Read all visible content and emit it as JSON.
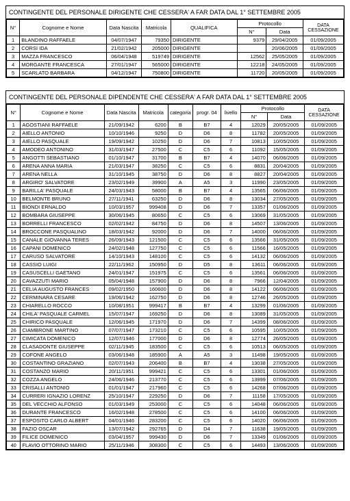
{
  "table1": {
    "title": "CONTINGENTE DEL PERSONALE DIRIGENTE CHE  CESSERA' A FAR DATA DAL 1° SETTEMBRE  2005",
    "cols": {
      "n": "N°",
      "nome": "Cognome e Nome",
      "nascita": "Data Nascita",
      "matricola": "Matricola",
      "qualifica": "QUALIFICA",
      "protocollo": "Protocollo",
      "proto_n": "N°",
      "proto_data": "Data",
      "cess": "DATA CESSAZIONE"
    },
    "rows": [
      {
        "n": "1",
        "nome": "BLANDINO RAFFAELE",
        "nascita": "04/07/1947",
        "matricola": "79350",
        "qualifica": "DIRIGENTE",
        "proto_n": "9379",
        "proto_data": "29/04/2005",
        "cess": "01/09/2005"
      },
      {
        "n": "2",
        "nome": "CORSI IDA",
        "nascita": "21/02/1942",
        "matricola": "205000",
        "qualifica": "DIRIGENTE",
        "proto_n": "",
        "proto_data": "20/06/2005",
        "cess": "01/09/2005"
      },
      {
        "n": "3",
        "nome": "MAZZA FRANCESCO",
        "nascita": "06/04/1948",
        "matricola": "519749",
        "qualifica": "DIRIGENTE",
        "proto_n": "12562",
        "proto_data": "25/05/2005",
        "cess": "01/09/2005"
      },
      {
        "n": "4",
        "nome": "MORGANTE FRANCESCA",
        "nascita": "27/01/1947",
        "matricola": "565000",
        "qualifica": "DIRIGENTE",
        "proto_n": "12218",
        "proto_data": "24/05/2005",
        "cess": "01/09/2005"
      },
      {
        "n": "5",
        "nome": "SCARLATO BARBARA",
        "nascita": "04/12/1947",
        "matricola": "750800",
        "qualifica": "DIRIGENTE",
        "proto_n": "11720",
        "proto_data": "20/05/2005",
        "cess": "01/09/2005"
      }
    ]
  },
  "table2": {
    "title": "CONTINGENTE DEL PERSONALE DIPENDENTE CHE CESSERA'  A FAR DATA DAL 1° SETTEMBRE  2005",
    "cols": {
      "n": "N°",
      "nome": "Cognome e Nome",
      "nascita": "Data Nascita",
      "matricola": "Matricola",
      "categoria": "categoria",
      "progr": "progr. 04",
      "livello": "livello",
      "protocollo": "Protocollo",
      "proto_n": "N°",
      "proto_data": "Data",
      "cess": "DATA CESSAZIONE"
    },
    "rows": [
      {
        "n": "1",
        "nome": "AGOSTIANI RAFFAELE",
        "nascita": "21/09/1942",
        "matricola": "6200",
        "categoria": "B",
        "progr": "B7",
        "livello": "4",
        "proto_n": "12029",
        "proto_data": "20/05/2005",
        "cess": "01/09/2005"
      },
      {
        "n": "2",
        "nome": "AIELLO ANTONIO",
        "nascita": "10/10/1946",
        "matricola": "9250",
        "categoria": "D",
        "progr": "D6",
        "livello": "8",
        "proto_n": "11782",
        "proto_data": "20/05/2005",
        "cess": "01/09/2005"
      },
      {
        "n": "3",
        "nome": "AIELLO PASQUALE",
        "nascita": "19/09/1942",
        "matricola": "10250",
        "categoria": "D",
        "progr": "D6",
        "livello": "7",
        "proto_n": "10813",
        "proto_data": "10/05/2005",
        "cess": "01/09/2005"
      },
      {
        "n": "4",
        "nome": "AMODEO ANTONINO",
        "nascita": "31/03/1947",
        "matricola": "27500",
        "categoria": "C",
        "progr": "C5",
        "livello": "6",
        "proto_n": "11092",
        "proto_data": "15/05/2005",
        "cess": "01/09/2005"
      },
      {
        "n": "5",
        "nome": "ANGOTTI SEBASTIANO",
        "nascita": "01/10/1947",
        "matricola": "31700",
        "categoria": "B",
        "progr": "B7",
        "livello": "4",
        "proto_n": "14070",
        "proto_data": "06/06/2005",
        "cess": "01/09/2005"
      },
      {
        "n": "6",
        "nome": "ARENA ANNA MARIA",
        "nascita": "21/03/1947",
        "matricola": "38250",
        "categoria": "C",
        "progr": "C5",
        "livello": "6",
        "proto_n": "8831",
        "proto_data": "20/04/2005",
        "cess": "01/09/2005"
      },
      {
        "n": "7",
        "nome": "ARENA NELLA",
        "nascita": "31/10/1945",
        "matricola": "38750",
        "categoria": "D",
        "progr": "D6",
        "livello": "8",
        "proto_n": "8827",
        "proto_data": "20/04/2005",
        "cess": "01/09/2005"
      },
      {
        "n": "8",
        "nome": "ARGIRO' SALVATORE",
        "nascita": "23/02/1949",
        "matricola": "39900",
        "categoria": "A",
        "progr": "A5",
        "livello": "3",
        "proto_n": "11990",
        "proto_data": "23/05/2005",
        "cess": "01/09/2005"
      },
      {
        "n": "9",
        "nome": "BARILLA' PASQUALE",
        "nascita": "24/03/1943",
        "matricola": "58000",
        "categoria": "B",
        "progr": "B7",
        "livello": "4",
        "proto_n": "13565",
        "proto_data": "06/06/2005",
        "cess": "01/09/2005"
      },
      {
        "n": "10",
        "nome": "BELMONTE BRUNO",
        "nascita": "27/11/1941",
        "matricola": "63250",
        "categoria": "D",
        "progr": "D6",
        "livello": "8",
        "proto_n": "13034",
        "proto_data": "27/05/2005",
        "cess": "01/09/2005"
      },
      {
        "n": "11",
        "nome": "BIONDI ERNALDO",
        "nascita": "10/03/1957",
        "matricola": "999408",
        "categoria": "D",
        "progr": "D6",
        "livello": "7",
        "proto_n": "13357",
        "proto_data": "01/06/2005",
        "cess": "01/09/2005"
      },
      {
        "n": "12",
        "nome": "BOMBARA GIUSEPPE",
        "nascita": "30/06/1945",
        "matricola": "80650",
        "categoria": "C",
        "progr": "C5",
        "livello": "6",
        "proto_n": "13069",
        "proto_data": "31/05/2005",
        "cess": "01/09/2005"
      },
      {
        "n": "13",
        "nome": "BORRELLI FRANCESCO",
        "nascita": "02/02/1942",
        "matricola": "84750",
        "categoria": "D",
        "progr": "D6",
        "livello": "8",
        "proto_n": "14507",
        "proto_data": "13/06/2005",
        "cess": "01/09/2005"
      },
      {
        "n": "14",
        "nome": "BROCCONE PASQUALINO",
        "nascita": "18/03/1942",
        "matricola": "92000",
        "categoria": "D",
        "progr": "D6",
        "livello": "7",
        "proto_n": "14000",
        "proto_data": "06/06/2005",
        "cess": "01/09/2005"
      },
      {
        "n": "15",
        "nome": "CANALE GIOVANNA TERES",
        "nascita": "26/09/1943",
        "matricola": "121500",
        "categoria": "C",
        "progr": "C5",
        "livello": "6",
        "proto_n": "13566",
        "proto_data": "31/05/2005",
        "cess": "01/09/2005"
      },
      {
        "n": "16",
        "nome": "CAPANI DOMENICO",
        "nascita": "24/02/1948",
        "matricola": "127750",
        "categoria": "C",
        "progr": "C5",
        "livello": "6",
        "proto_n": "11566",
        "proto_data": "16/05/2005",
        "cess": "01/09/2005"
      },
      {
        "n": "17",
        "nome": "CARUSO SALVATORE",
        "nascita": "14/10/1943",
        "matricola": "148100",
        "categoria": "C",
        "progr": "C5",
        "livello": "6",
        "proto_n": "14132",
        "proto_data": "06/06/2005",
        "cess": "01/09/2005"
      },
      {
        "n": "18",
        "nome": "CASSIO LUIGI",
        "nascita": "22/11/1962",
        "matricola": "150950",
        "categoria": "D",
        "progr": "D5",
        "livello": "8",
        "proto_n": "13611",
        "proto_data": "06/06/2005",
        "cess": "01/09/2005"
      },
      {
        "n": "19",
        "nome": "CASUSCELLI GAETANO",
        "nascita": "24/01/1947",
        "matricola": "151975",
        "categoria": "C",
        "progr": "C5",
        "livello": "6",
        "proto_n": "13561",
        "proto_data": "06/06/2005",
        "cess": "01/09/2005"
      },
      {
        "n": "20",
        "nome": "CAVAZZUTI MARIO",
        "nascita": "05/04/1948",
        "matricola": "157900",
        "categoria": "D",
        "progr": "D6",
        "livello": "8",
        "proto_n": "7966",
        "proto_data": "12/04/2005",
        "cess": "01/09/2005"
      },
      {
        "n": "21",
        "nome": "CELIA AUGUSTO FRANCES",
        "nascita": "09/02/1950",
        "matricola": "160600",
        "categoria": "D",
        "progr": "D6",
        "livello": "8",
        "proto_n": "14122",
        "proto_data": "06/06/2005",
        "cess": "01/09/2005"
      },
      {
        "n": "22",
        "nome": "CERMINARA CESARE",
        "nascita": "19/06/1942",
        "matricola": "162750",
        "categoria": "D",
        "progr": "D6",
        "livello": "8",
        "proto_n": "12746",
        "proto_data": "26/05/2005",
        "cess": "01/09/2005"
      },
      {
        "n": "23",
        "nome": "CHIARELLO ROCCO",
        "nascita": "10/08/1951",
        "matricola": "999417",
        "categoria": "B",
        "progr": "B7",
        "livello": "4",
        "proto_n": "13299",
        "proto_data": "01/06/2005",
        "cess": "01/09/2005"
      },
      {
        "n": "24",
        "nome": "CHILA' PASQUALE CARMEL",
        "nascita": "15/07/1947",
        "matricola": "169250",
        "categoria": "D",
        "progr": "D6",
        "livello": "8",
        "proto_n": "13089",
        "proto_data": "31/05/2005",
        "cess": "01/09/2005"
      },
      {
        "n": "25",
        "nome": "CHIRICO PASQUALE",
        "nascita": "12/06/1945",
        "matricola": "171970",
        "categoria": "D",
        "progr": "D6",
        "livello": "7",
        "proto_n": "14399",
        "proto_data": "08/06/2005",
        "cess": "01/09/2005"
      },
      {
        "n": "26",
        "nome": "CIAMBRONE MARTINO",
        "nascita": "07/07/1947",
        "matricola": "173210",
        "categoria": "C",
        "progr": "C5",
        "livello": "6",
        "proto_n": "10595",
        "proto_data": "10/05/2005",
        "cess": "01/09/2005"
      },
      {
        "n": "27",
        "nome": "CIMICATA DOMENICO",
        "nascita": "12/07/1946",
        "matricola": "177000",
        "categoria": "D",
        "progr": "D6",
        "livello": "8",
        "proto_n": "12774",
        "proto_data": "26/05/2005",
        "cess": "01/09/2005"
      },
      {
        "n": "28",
        "nome": "CLASADONTE GIUSEPPE",
        "nascita": "02/11/1945",
        "matricola": "183500",
        "categoria": "C",
        "progr": "C5",
        "livello": "6",
        "proto_n": "10513",
        "proto_data": "06/05/2005",
        "cess": "01/09/2005"
      },
      {
        "n": "29",
        "nome": "COFONE ANGELO",
        "nascita": "03/06/1948",
        "matricola": "185900",
        "categoria": "A",
        "progr": "A5",
        "livello": "3",
        "proto_n": "11498",
        "proto_data": "19/05/2005",
        "cess": "01/09/2005"
      },
      {
        "n": "30",
        "nome": "COSTANTINO GRAZIANO",
        "nascita": "02/07/1943",
        "matricola": "206400",
        "categoria": "B",
        "progr": "B7",
        "livello": "4",
        "proto_n": "13038",
        "proto_data": "27/05/2005",
        "cess": "01/09/2005"
      },
      {
        "n": "31",
        "nome": "COSTANZO MARIO",
        "nascita": "20/11/1951",
        "matricola": "999421",
        "categoria": "C",
        "progr": "C5",
        "livello": "6",
        "proto_n": "13301",
        "proto_data": "01/06/2005",
        "cess": "01/09/2005"
      },
      {
        "n": "32",
        "nome": "COZZA ANGELO",
        "nascita": "24/06/1946",
        "matricola": "213770",
        "categoria": "C",
        "progr": "C5",
        "livello": "6",
        "proto_n": "13999",
        "proto_data": "07/06/2005",
        "cess": "01/09/2005"
      },
      {
        "n": "33",
        "nome": "CRISALLI ANTONIO",
        "nascita": "01/01/1947",
        "matricola": "217960",
        "categoria": "C",
        "progr": "C5",
        "livello": "6",
        "proto_n": "14268",
        "proto_data": "07/06/2005",
        "cess": "01/09/2005"
      },
      {
        "n": "34",
        "nome": "CURRERI IGNAZIO LORENZ",
        "nascita": "25/10/1947",
        "matricola": "229250",
        "categoria": "D",
        "progr": "D6",
        "livello": "7",
        "proto_n": "11158",
        "proto_data": "17/05/2005",
        "cess": "01/09/2005"
      },
      {
        "n": "35",
        "nome": "DEL VECCHIO ALFONSO",
        "nascita": "01/03/1949",
        "matricola": "253000",
        "categoria": "C",
        "progr": "C5",
        "livello": "6",
        "proto_n": "14048",
        "proto_data": "06/06/2005",
        "cess": "01/09/2005"
      },
      {
        "n": "36",
        "nome": "DURANTE FRANCESCO",
        "nascita": "16/02/1948",
        "matricola": "278500",
        "categoria": "C",
        "progr": "C5",
        "livello": "6",
        "proto_n": "14100",
        "proto_data": "06/06/2005",
        "cess": "01/09/2005"
      },
      {
        "n": "37",
        "nome": "ESPOSITO CARLO ALBERT",
        "nascita": "04/01/1946",
        "matricola": "283200",
        "categoria": "C",
        "progr": "C5",
        "livello": "6",
        "proto_n": "14020",
        "proto_data": "06/06/2005",
        "cess": "01/09/2005"
      },
      {
        "n": "38",
        "nome": "FAZIO OSCAR",
        "nascita": "13/07/1942",
        "matricola": "292765",
        "categoria": "D",
        "progr": "D4",
        "livello": "7",
        "proto_n": "11638",
        "proto_data": "19/05/2005",
        "cess": "01/09/2005"
      },
      {
        "n": "39",
        "nome": "FILICE DOMENICO",
        "nascita": "03/04/1957",
        "matricola": "999430",
        "categoria": "D",
        "progr": "D6",
        "livello": "7",
        "proto_n": "13349",
        "proto_data": "01/06/2005",
        "cess": "01/09/2005"
      },
      {
        "n": "40",
        "nome": "FLAVIO OTTORINO MARIO",
        "nascita": "25/11/1946",
        "matricola": "308300",
        "categoria": "C",
        "progr": "C5",
        "livello": "6",
        "proto_n": "14493",
        "proto_data": "13/06/2005",
        "cess": "01/09/2005"
      }
    ]
  }
}
